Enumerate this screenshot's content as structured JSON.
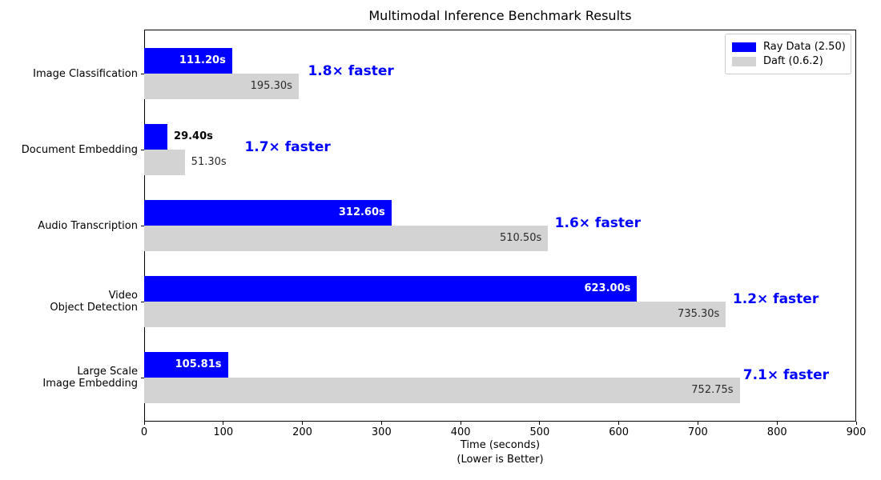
{
  "title": "Multimodal Inference Benchmark Results",
  "colors": {
    "ray_bar": "#0000ff",
    "daft_bar": "#d3d3d3",
    "annotation_text": "#0000ff",
    "ray_label_inside": "#ffffff",
    "ray_label_outside": "#000000",
    "daft_label": "#2b2b2b"
  },
  "legend": {
    "items": [
      {
        "label": "Ray Data (2.50)",
        "color": "#0000ff"
      },
      {
        "label": "Daft (0.6.2)",
        "color": "#d3d3d3"
      }
    ],
    "position": "upper right"
  },
  "xaxis": {
    "label_line1": "Time (seconds)",
    "label_line2": "(Lower is Better)",
    "ticks": [
      0,
      100,
      200,
      300,
      400,
      500,
      600,
      700,
      800,
      900
    ]
  },
  "chart_data": {
    "type": "bar",
    "orientation": "horizontal",
    "title": "Multimodal Inference Benchmark Results",
    "xlabel": "Time (seconds) (Lower is Better)",
    "xlim": [
      0,
      900
    ],
    "grid": false,
    "legend_position": "upper right",
    "categories": [
      [
        "Image Classification"
      ],
      [
        "Document Embedding"
      ],
      [
        "Audio Transcription"
      ],
      [
        "Video",
        "Object Detection"
      ],
      [
        "Large Scale",
        "Image Embedding"
      ]
    ],
    "series": [
      {
        "name": "Ray Data (2.50)",
        "values": [
          111.2,
          29.4,
          312.6,
          623.0,
          105.81
        ],
        "labels": [
          "111.20s",
          "29.40s",
          "312.60s",
          "623.00s",
          "105.81s"
        ]
      },
      {
        "name": "Daft (0.6.2)",
        "values": [
          195.3,
          51.3,
          510.5,
          735.3,
          752.75
        ],
        "labels": [
          "195.30s",
          "51.30s",
          "510.50s",
          "735.30s",
          "752.75s"
        ]
      }
    ],
    "annotations": [
      {
        "text": "1.8× faster",
        "x": 207,
        "row": 0
      },
      {
        "text": "1.7× faster",
        "x": 127,
        "row": 1
      },
      {
        "text": "1.6× faster",
        "x": 519,
        "row": 2
      },
      {
        "text": "1.2× faster",
        "x": 744,
        "row": 3
      },
      {
        "text": "7.1× faster",
        "x": 757,
        "row": 4
      }
    ]
  }
}
